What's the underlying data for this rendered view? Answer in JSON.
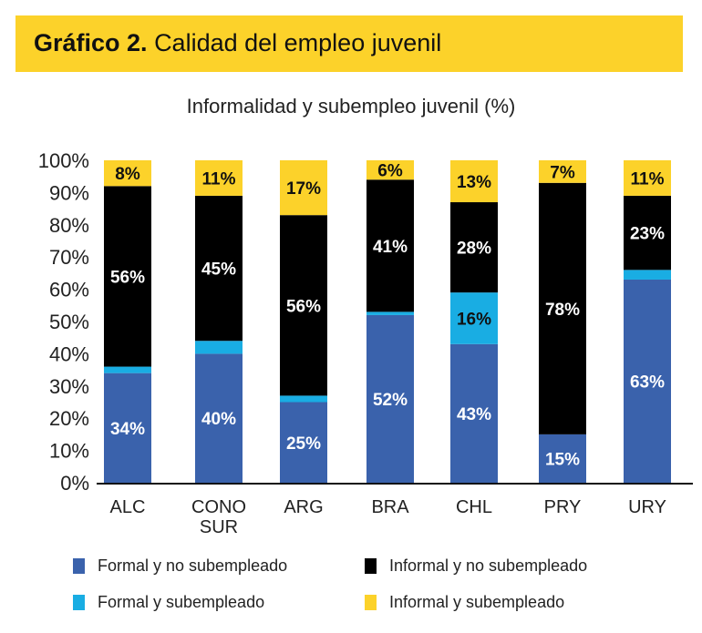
{
  "header": {
    "title_bold": "Gráfico 2.",
    "title_rest": "Calidad del empleo juvenil",
    "banner_color": "#fcd22a"
  },
  "chart_data": {
    "type": "bar",
    "stacked": true,
    "title": "Informalidad y subempleo juvenil (%)",
    "xlabel": "",
    "ylabel": "",
    "ylim": [
      0,
      100
    ],
    "yticks": [
      "0%",
      "10%",
      "20%",
      "30%",
      "40%",
      "50%",
      "60%",
      "70%",
      "80%",
      "90%",
      "100%"
    ],
    "grid": false,
    "legend_position": "bottom",
    "categories": [
      "ALC",
      "CONO SUR",
      "ARG",
      "BRA",
      "CHL",
      "PRY",
      "URY"
    ],
    "category_lines": [
      [
        "ALC"
      ],
      [
        "CONO",
        "SUR"
      ],
      [
        "ARG"
      ],
      [
        "BRA"
      ],
      [
        "CHL"
      ],
      [
        "PRY"
      ],
      [
        "URY"
      ]
    ],
    "series": [
      {
        "name": "Formal y no subempleado",
        "color": "#3a62ac",
        "label_color": "#ffffff",
        "values": [
          34,
          40,
          25,
          52,
          43,
          15,
          63
        ],
        "labels": [
          "34%",
          "40%",
          "25%",
          "52%",
          "43%",
          "15%",
          "63%"
        ]
      },
      {
        "name": "Formal y subempleado",
        "color": "#19ade3",
        "label_color": "#111111",
        "values": [
          2,
          4,
          2,
          1,
          16,
          0,
          3
        ],
        "labels": [
          "",
          "",
          "",
          "",
          "16%",
          "",
          ""
        ]
      },
      {
        "name": "Informal y no subempleado",
        "color": "#000000",
        "label_color": "#ffffff",
        "values": [
          56,
          45,
          56,
          41,
          28,
          78,
          23
        ],
        "labels": [
          "56%",
          "45%",
          "56%",
          "41%",
          "28%",
          "78%",
          "23%"
        ]
      },
      {
        "name": "Informal y subempleado",
        "color": "#fcd22a",
        "label_color": "#111111",
        "values": [
          8,
          11,
          17,
          6,
          13,
          7,
          11
        ],
        "labels": [
          "8%",
          "11%",
          "17%",
          "6%",
          "13%",
          "7%",
          "11%"
        ]
      }
    ]
  },
  "legend": [
    {
      "label": "Formal y no subempleado",
      "color": "#3a62ac"
    },
    {
      "label": "Informal y no subempleado",
      "color": "#000000"
    },
    {
      "label": "Formal y subempleado",
      "color": "#19ade3"
    },
    {
      "label": "Informal y subempleado",
      "color": "#fcd22a"
    }
  ]
}
